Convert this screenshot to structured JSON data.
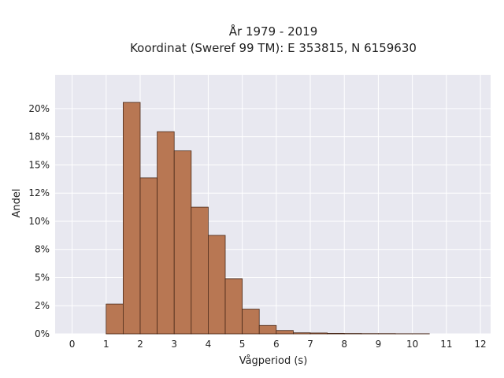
{
  "chart_data": {
    "type": "bar",
    "title_line1": "År 1979 - 2019",
    "title_line2": "Koordinat (Sweref 99 TM): E 353815, N 6159630",
    "xlabel": "Vågperiod (s)",
    "ylabel": "Andel",
    "bin_width": 0.5,
    "bins": [
      {
        "x0": 1.0,
        "x1": 1.5,
        "value": 0.0265
      },
      {
        "x0": 1.5,
        "x1": 2.0,
        "value": 0.2055
      },
      {
        "x0": 2.0,
        "x1": 2.5,
        "value": 0.1385
      },
      {
        "x0": 2.5,
        "x1": 3.0,
        "value": 0.1795
      },
      {
        "x0": 3.0,
        "x1": 3.5,
        "value": 0.1625
      },
      {
        "x0": 3.5,
        "x1": 4.0,
        "value": 0.1125
      },
      {
        "x0": 4.0,
        "x1": 4.5,
        "value": 0.0875
      },
      {
        "x0": 4.5,
        "x1": 5.0,
        "value": 0.049
      },
      {
        "x0": 5.0,
        "x1": 5.5,
        "value": 0.022
      },
      {
        "x0": 5.5,
        "x1": 6.0,
        "value": 0.0075
      },
      {
        "x0": 6.0,
        "x1": 6.5,
        "value": 0.003
      },
      {
        "x0": 6.5,
        "x1": 7.0,
        "value": 0.001
      },
      {
        "x0": 7.0,
        "x1": 7.5,
        "value": 0.0008
      },
      {
        "x0": 7.5,
        "x1": 8.0,
        "value": 0.0004
      },
      {
        "x0": 8.0,
        "x1": 8.5,
        "value": 0.0003
      },
      {
        "x0": 8.5,
        "x1": 9.0,
        "value": 0.0002
      },
      {
        "x0": 9.0,
        "x1": 9.5,
        "value": 0.0002
      },
      {
        "x0": 9.5,
        "x1": 10.0,
        "value": 0.0001
      },
      {
        "x0": 10.0,
        "x1": 10.5,
        "value": 0.0001
      }
    ],
    "xlim": [
      -0.5,
      12.3
    ],
    "ylim": [
      0,
      0.23
    ],
    "xticks": [
      0,
      1,
      2,
      3,
      4,
      5,
      6,
      7,
      8,
      9,
      10,
      11,
      12
    ],
    "yticks": [
      {
        "value": 0.0,
        "label": "0%"
      },
      {
        "value": 0.025,
        "label": "2%"
      },
      {
        "value": 0.05,
        "label": "5%"
      },
      {
        "value": 0.075,
        "label": "8%"
      },
      {
        "value": 0.1,
        "label": "10%"
      },
      {
        "value": 0.125,
        "label": "12%"
      },
      {
        "value": 0.15,
        "label": "15%"
      },
      {
        "value": 0.175,
        "label": "18%"
      },
      {
        "value": 0.2,
        "label": "20%"
      }
    ],
    "grid": true,
    "colors": {
      "bar_fill": "#b87753",
      "bar_edge": "#4a2a1a",
      "plot_bg": "#e8e8f0",
      "grid": "#ffffff"
    }
  }
}
